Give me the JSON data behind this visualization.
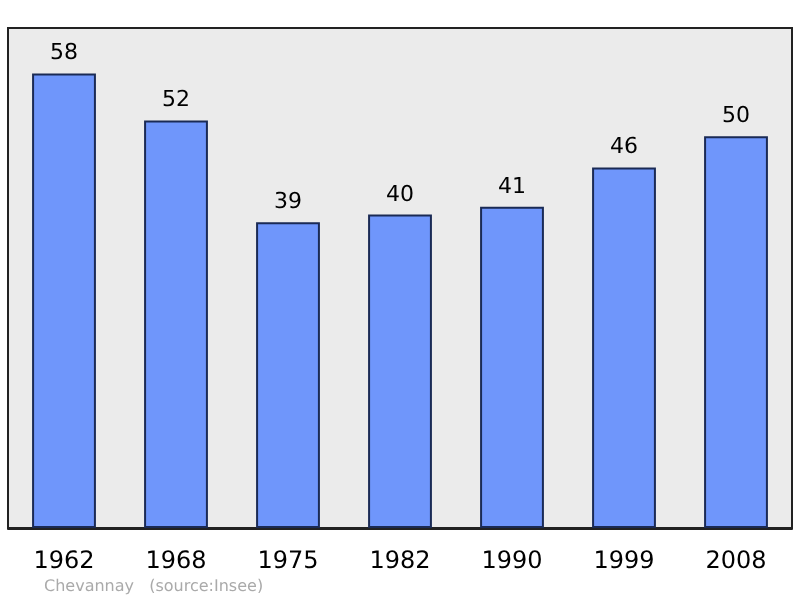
{
  "chart_data": {
    "type": "bar",
    "categories": [
      "1962",
      "1968",
      "1975",
      "1982",
      "1990",
      "1999",
      "2008"
    ],
    "values": [
      58,
      52,
      39,
      40,
      41,
      46,
      50
    ],
    "color": "#6f96fb",
    "data_labels": true,
    "grid": false,
    "tick_labels": "x",
    "annotations": [
      "Chevannay   (source:Insee)"
    ]
  }
}
